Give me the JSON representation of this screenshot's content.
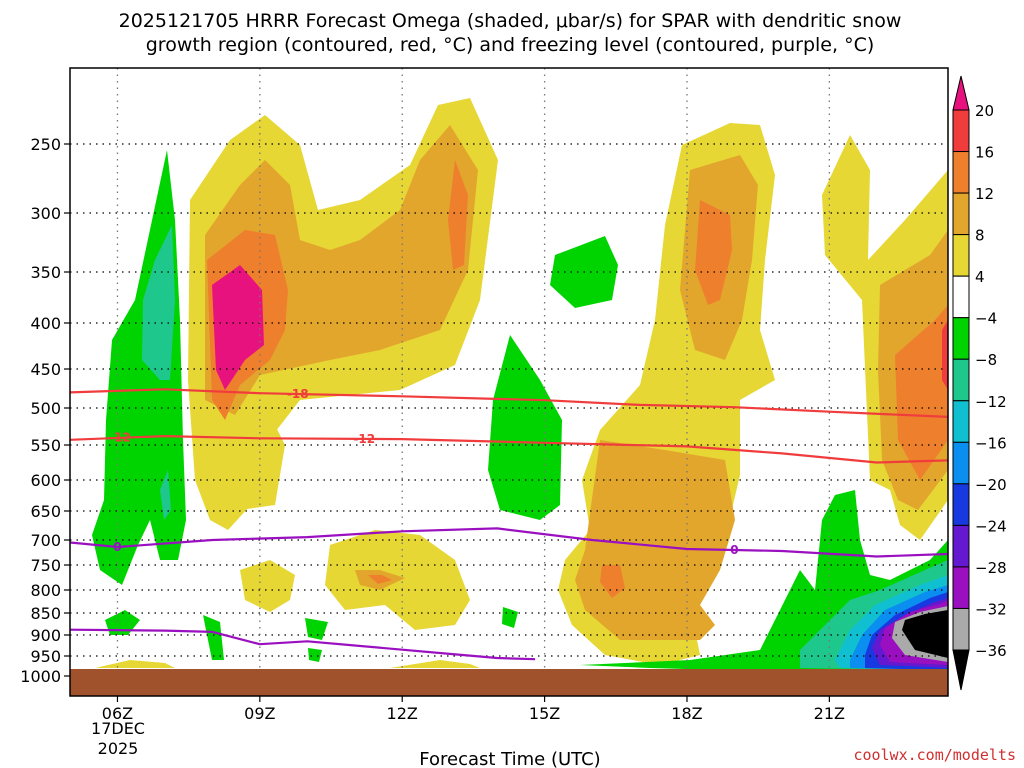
{
  "chart_data": {
    "type": "heatmap",
    "title_line1": "2025121705 HRRR Forecast Omega (shaded, μbar/s) for SPAR with dendritic snow",
    "title_line2": "growth region (contoured, red, °C) and freezing level (contoured, purple, °C)",
    "xlabel": "Forecast Time (UTC)",
    "x_ticks": [
      {
        "hour": 6,
        "label": "06Z"
      },
      {
        "hour": 9,
        "label": "09Z"
      },
      {
        "hour": 12,
        "label": "12Z"
      },
      {
        "hour": 15,
        "label": "15Z"
      },
      {
        "hour": 18,
        "label": "18Z"
      },
      {
        "hour": 21,
        "label": "21Z"
      }
    ],
    "date_label_1": "17DEC",
    "date_label_2": "2025",
    "x_range_hours": [
      5,
      23.5
    ],
    "y_ticks": [
      "250",
      "300",
      "350",
      "400",
      "450",
      "500",
      "550",
      "600",
      "650",
      "700",
      "750",
      "800",
      "850",
      "900",
      "950",
      "1000"
    ],
    "y_range_hPa": [
      200,
      1020
    ],
    "colorbar_labels": [
      "20",
      "16",
      "12",
      "8",
      "4",
      "−4",
      "−8",
      "−12",
      "−16",
      "−20",
      "−24",
      "−28",
      "−32",
      "−36"
    ],
    "colorbar_colors": [
      "#e8127f",
      "#f03c3c",
      "#ee7f2d",
      "#e3a62d",
      "#e6d734",
      "#ffffff",
      "#00d400",
      "#1ec88c",
      "#10c0d0",
      "#0a8ef0",
      "#1838e0",
      "#6418d0",
      "#9a10c0",
      "#aaaaaa",
      "#000000"
    ],
    "contour_labels": {
      "dgz_top": "-18",
      "dgz_bottom": "-12",
      "freezing": "0"
    },
    "dgz_top_line": [
      [
        5,
        480
      ],
      [
        7,
        476
      ],
      [
        9,
        481
      ],
      [
        12,
        485
      ],
      [
        15,
        490
      ],
      [
        17,
        496
      ],
      [
        19,
        499
      ],
      [
        21,
        505
      ],
      [
        23.5,
        512
      ]
    ],
    "dgz_bottom_line": [
      [
        5,
        543
      ],
      [
        7,
        538
      ],
      [
        9,
        541
      ],
      [
        12,
        542
      ],
      [
        15,
        547
      ],
      [
        18,
        552
      ],
      [
        20,
        562
      ],
      [
        22,
        575
      ],
      [
        23.5,
        572
      ]
    ],
    "freezing_line": [
      [
        5,
        705
      ],
      [
        6,
        714
      ],
      [
        8,
        700
      ],
      [
        10,
        695
      ],
      [
        12,
        685
      ],
      [
        14,
        680
      ],
      [
        16,
        700
      ],
      [
        18,
        718
      ],
      [
        20,
        722
      ],
      [
        22,
        733
      ],
      [
        23.5,
        728
      ]
    ],
    "freezing_line_low": [
      [
        5,
        888
      ],
      [
        7,
        890
      ],
      [
        8,
        893
      ],
      [
        9,
        922
      ],
      [
        10,
        915
      ],
      [
        11,
        925
      ],
      [
        13,
        945
      ],
      [
        14,
        955
      ],
      [
        14.8,
        958
      ]
    ],
    "watermark": "coolwx.com/modelts",
    "ground_color": "#a0522d"
  }
}
